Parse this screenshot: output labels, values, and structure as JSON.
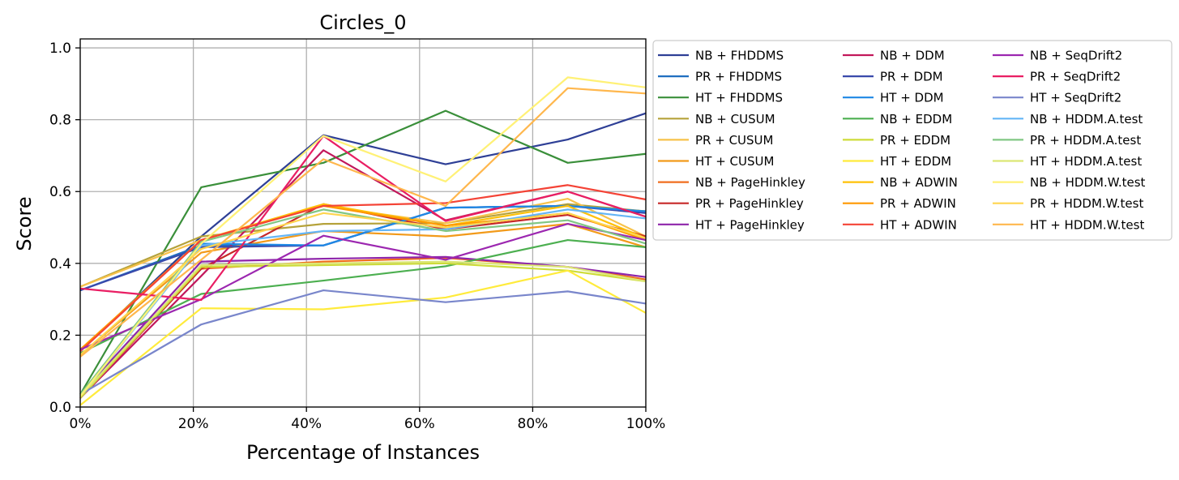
{
  "chart_data": {
    "type": "line",
    "title": "Circles_0",
    "xlabel": "Percentage of Instances",
    "ylabel": "Score",
    "xlim": [
      0,
      100
    ],
    "ylim": [
      0,
      1.025
    ],
    "x_ticks": [
      0,
      20,
      40,
      60,
      80,
      100
    ],
    "x_tick_labels": [
      "0%",
      "20%",
      "40%",
      "60%",
      "80%",
      "100%"
    ],
    "y_ticks": [
      0,
      0.2,
      0.4,
      0.6,
      0.8,
      1.0
    ],
    "y_tick_labels": [
      "0.0",
      "0.2",
      "0.4",
      "0.6",
      "0.8",
      "1.0"
    ],
    "grid": true,
    "legend_placement": "outside-right",
    "legend_columns": 3,
    "x": [
      0,
      21.4,
      43,
      64.6,
      86.2,
      100
    ],
    "series": [
      {
        "name": "NB + FHDDMS",
        "color": "#2e3f96",
        "values": [
          0.155,
          0.475,
          0.757,
          0.676,
          0.745,
          0.818
        ]
      },
      {
        "name": "PR + FHDDMS",
        "color": "#1f6fc0",
        "values": [
          0.325,
          0.45,
          0.45,
          0.555,
          0.56,
          0.545
        ]
      },
      {
        "name": "HT + FHDDMS",
        "color": "#3a8f3a",
        "values": [
          0.035,
          0.612,
          0.68,
          0.825,
          0.68,
          0.705
        ]
      },
      {
        "name": "NB + CUSUM",
        "color": "#b5a23a",
        "values": [
          0.335,
          0.475,
          0.51,
          0.512,
          0.565,
          0.545
        ]
      },
      {
        "name": "PR + CUSUM",
        "color": "#f7c24a",
        "values": [
          0.335,
          0.465,
          0.56,
          0.512,
          0.58,
          0.475
        ]
      },
      {
        "name": "HT + CUSUM",
        "color": "#f29a1a",
        "values": [
          0.145,
          0.43,
          0.49,
          0.475,
          0.51,
          0.445
        ]
      },
      {
        "name": "NB + PageHinkley",
        "color": "#f06e1f",
        "values": [
          0.025,
          0.385,
          0.405,
          0.415,
          0.39,
          0.355
        ]
      },
      {
        "name": "PR + PageHinkley",
        "color": "#c62828",
        "values": [
          0.025,
          0.385,
          0.565,
          0.495,
          0.535,
          0.475
        ]
      },
      {
        "name": "HT + PageHinkley",
        "color": "#8e24aa",
        "values": [
          0.035,
          0.405,
          0.413,
          0.418,
          0.39,
          0.362
        ]
      },
      {
        "name": "NB + DDM",
        "color": "#c2185b",
        "values": [
          0.025,
          0.365,
          0.715,
          0.52,
          0.6,
          0.53
        ]
      },
      {
        "name": "PR + DDM",
        "color": "#3949ab",
        "values": [
          0.325,
          0.445,
          0.45,
          0.555,
          0.56,
          0.54
        ]
      },
      {
        "name": "HT + DDM",
        "color": "#1e88e5",
        "values": [
          0.03,
          0.455,
          0.45,
          0.555,
          0.56,
          0.545
        ]
      },
      {
        "name": "NB + EDDM",
        "color": "#4caf50",
        "values": [
          0.15,
          0.315,
          0.352,
          0.392,
          0.465,
          0.445
        ]
      },
      {
        "name": "PR + EDDM",
        "color": "#cddc39",
        "values": [
          0.025,
          0.39,
          0.395,
          0.4,
          0.38,
          0.35
        ]
      },
      {
        "name": "HT + EDDM",
        "color": "#ffeb3b",
        "values": [
          0.005,
          0.275,
          0.272,
          0.305,
          0.38,
          0.262
        ]
      },
      {
        "name": "NB + ADWIN",
        "color": "#ffc107",
        "values": [
          0.16,
          0.465,
          0.565,
          0.505,
          0.56,
          0.47
        ]
      },
      {
        "name": "PR + ADWIN",
        "color": "#ff9800",
        "values": [
          0.16,
          0.465,
          0.56,
          0.505,
          0.54,
          0.465
        ]
      },
      {
        "name": "HT + ADWIN",
        "color": "#f44336",
        "values": [
          0.155,
          0.465,
          0.56,
          0.568,
          0.618,
          0.578
        ]
      },
      {
        "name": "NB + SeqDrift2",
        "color": "#9c27b0",
        "values": [
          0.16,
          0.3,
          0.477,
          0.41,
          0.51,
          0.465
        ]
      },
      {
        "name": "PR + SeqDrift2",
        "color": "#e91e63",
        "values": [
          0.33,
          0.298,
          0.755,
          0.518,
          0.6,
          0.53
        ]
      },
      {
        "name": "HT + SeqDrift2",
        "color": "#7986cb",
        "values": [
          0.035,
          0.23,
          0.325,
          0.292,
          0.322,
          0.288
        ]
      },
      {
        "name": "NB + HDDM.A.test",
        "color": "#64b5f6",
        "values": [
          0.03,
          0.45,
          0.49,
          0.495,
          0.55,
          0.525
        ]
      },
      {
        "name": "PR + HDDM.A.test",
        "color": "#81c784",
        "values": [
          0.035,
          0.46,
          0.55,
          0.49,
          0.52,
          0.455
        ]
      },
      {
        "name": "HT + HDDM.A.test",
        "color": "#dce775",
        "values": [
          0.03,
          0.395,
          0.4,
          0.405,
          0.39,
          0.35
        ]
      },
      {
        "name": "NB + HDDM.W.test",
        "color": "#fff176",
        "values": [
          0.03,
          0.455,
          0.755,
          0.628,
          0.918,
          0.89
        ]
      },
      {
        "name": "PR + HDDM.W.test",
        "color": "#ffd54f",
        "values": [
          0.145,
          0.44,
          0.54,
          0.5,
          0.54,
          0.47
        ]
      },
      {
        "name": "HT + HDDM.W.test",
        "color": "#ffb74d",
        "values": [
          0.14,
          0.41,
          0.69,
          0.56,
          0.888,
          0.873
        ]
      }
    ]
  }
}
